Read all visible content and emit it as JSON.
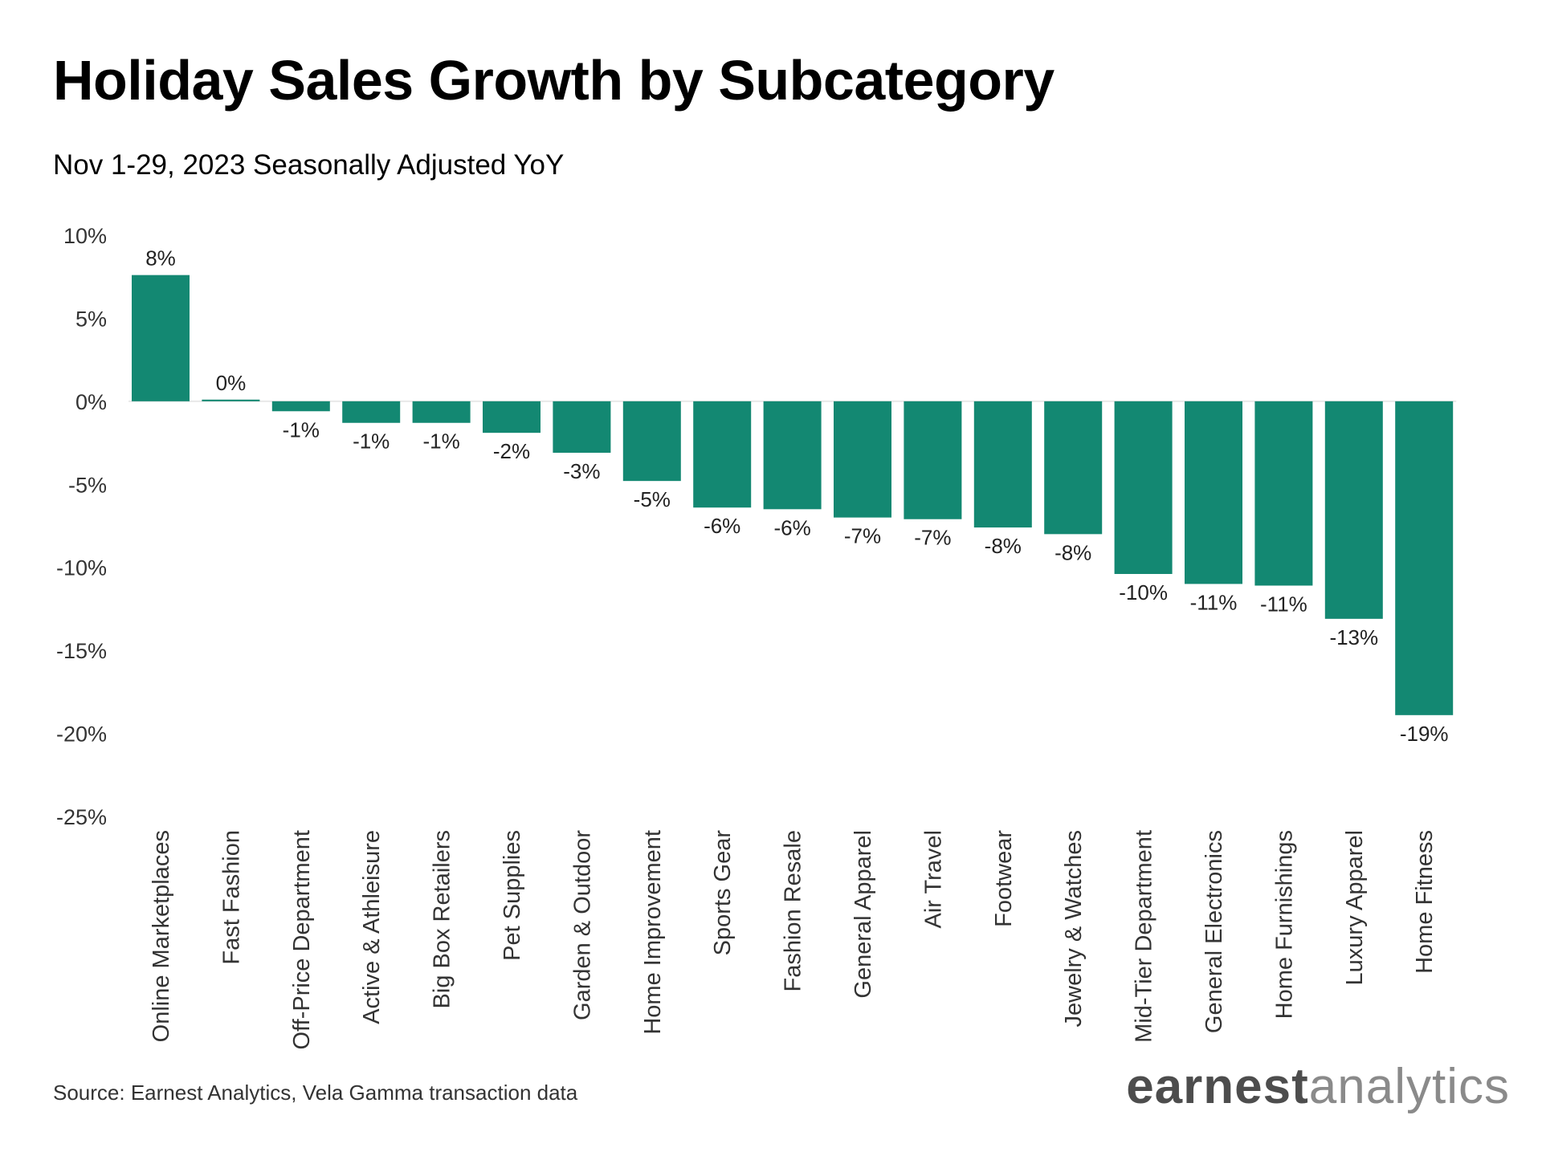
{
  "title": "Holiday Sales Growth by Subcategory",
  "subtitle": "Nov 1-29, 2023 Seasonally Adjusted YoY",
  "source": "Source: Earnest Analytics, Vela Gamma transaction data",
  "logo": {
    "part1": "earnest",
    "part2": "analytics"
  },
  "colors": {
    "bar": "#138872",
    "axis_text": "#333333",
    "label_text": "#222222",
    "zero_line": "#e8e8e8"
  },
  "chart_data": {
    "type": "bar",
    "title": "Holiday Sales Growth by Subcategory",
    "subtitle": "Nov 1-29, 2023 Seasonally Adjusted YoY",
    "xlabel": "",
    "ylabel": "",
    "ylim": [
      -25,
      10
    ],
    "yticks": [
      10,
      5,
      0,
      -5,
      -10,
      -15,
      -20,
      -25
    ],
    "ytick_labels": [
      "10%",
      "5%",
      "0%",
      "-5%",
      "-10%",
      "-15%",
      "-20%",
      "-25%"
    ],
    "grid": false,
    "categories": [
      "Online Marketplaces",
      "Fast Fashion",
      "Off-Price Department",
      "Active & Athleisure",
      "Big Box Retailers",
      "Pet Supplies",
      "Garden & Outdoor",
      "Home Improvement",
      "Sports Gear",
      "Fashion Resale",
      "General Apparel",
      "Air Travel",
      "Footwear",
      "Jewelry & Watches",
      "Mid-Tier Department",
      "General Electronics",
      "Home Furnishings",
      "Luxury Apparel",
      "Home Fitness"
    ],
    "values": [
      7.6,
      0.1,
      -0.6,
      -1.3,
      -1.3,
      -1.9,
      -3.1,
      -4.8,
      -6.4,
      -6.5,
      -7.0,
      -7.1,
      -7.6,
      -8.0,
      -10.4,
      -11.0,
      -11.1,
      -13.1,
      -18.9
    ],
    "data_labels": [
      "8%",
      "0%",
      "-1%",
      "-1%",
      "-1%",
      "-2%",
      "-3%",
      "-5%",
      "-6%",
      "-6%",
      "-7%",
      "-7%",
      "-8%",
      "-8%",
      "-10%",
      "-11%",
      "-11%",
      "-13%",
      "-19%"
    ]
  }
}
